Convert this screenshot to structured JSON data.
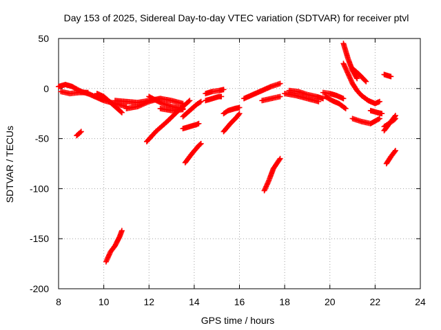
{
  "chart_data": {
    "type": "scatter",
    "title": "Day 153 of 2025, Sidereal Day-to-day VTEC variation (SDTVAR) for receiver ptvl",
    "xlabel": "GPS time / hours",
    "ylabel": "SDTVAR / TECUs",
    "xlim": [
      8,
      24
    ],
    "ylim": [
      -200,
      50
    ],
    "xticks": [
      8,
      10,
      12,
      14,
      16,
      18,
      20,
      22,
      24
    ],
    "yticks": [
      -200,
      -150,
      -100,
      -50,
      0,
      50
    ],
    "grid": true,
    "marker": "plus",
    "color": "#ff0000",
    "series": [
      {
        "name": "arc-1",
        "x": [
          8.0,
          8.3,
          8.6,
          9.0,
          9.3
        ],
        "y": [
          2,
          4,
          2,
          -3,
          -5
        ]
      },
      {
        "name": "arc-2",
        "x": [
          8.1,
          8.5,
          8.9,
          9.3
        ],
        "y": [
          -3,
          -5,
          -4,
          -4
        ]
      },
      {
        "name": "arc-3",
        "x": [
          9.2,
          9.6,
          10.0,
          10.5,
          11.0
        ],
        "y": [
          -4,
          -8,
          -12,
          -15,
          -18
        ]
      },
      {
        "name": "arc-4",
        "x": [
          9.7,
          10.0,
          10.3,
          10.6,
          10.8
        ],
        "y": [
          -5,
          -8,
          -14,
          -20,
          -24
        ]
      },
      {
        "name": "arc-5",
        "x": [
          10.5,
          11.0,
          11.5,
          12.0,
          12.5
        ],
        "y": [
          -12,
          -13,
          -14,
          -12,
          -10
        ]
      },
      {
        "name": "arc-6",
        "x": [
          11.0,
          11.5,
          12.0,
          12.5,
          13.0,
          13.5
        ],
        "y": [
          -20,
          -18,
          -13,
          -10,
          -12,
          -15
        ]
      },
      {
        "name": "arc-7",
        "x": [
          12.0,
          12.5,
          13.0,
          13.5
        ],
        "y": [
          -8,
          -14,
          -18,
          -20
        ]
      },
      {
        "name": "arc-8",
        "x": [
          12.5,
          13.0,
          13.5
        ],
        "y": [
          -20,
          -22,
          -21
        ]
      },
      {
        "name": "arc-9",
        "x": [
          11.9,
          12.3,
          12.8,
          13.3,
          13.8
        ],
        "y": [
          -53,
          -43,
          -33,
          -22,
          -12
        ]
      },
      {
        "name": "arc-10",
        "x": [
          13.5,
          13.8,
          14.1,
          14.3
        ],
        "y": [
          -28,
          -22,
          -16,
          -13
        ]
      },
      {
        "name": "arc-11",
        "x": [
          13.5,
          13.8,
          14.1,
          14.2
        ],
        "y": [
          -40,
          -38,
          -36,
          -35
        ]
      },
      {
        "name": "arc-12",
        "x": [
          13.6,
          13.9,
          14.2,
          14.3
        ],
        "y": [
          -74,
          -65,
          -57,
          -55
        ]
      },
      {
        "name": "arc-13",
        "x": [
          14.5,
          14.8,
          15.1,
          15.3
        ],
        "y": [
          -5,
          -3,
          -2,
          -1
        ]
      },
      {
        "name": "arc-14",
        "x": [
          14.5,
          14.8,
          15.1,
          15.2
        ],
        "y": [
          -12,
          -10,
          -8,
          -8
        ]
      },
      {
        "name": "arc-15",
        "x": [
          15.3,
          15.5,
          15.8,
          16.0
        ],
        "y": [
          -25,
          -22,
          -20,
          -19
        ]
      },
      {
        "name": "arc-16",
        "x": [
          15.3,
          15.6,
          15.9,
          16.0
        ],
        "y": [
          -43,
          -35,
          -28,
          -25
        ]
      },
      {
        "name": "arc-17",
        "x": [
          16.2,
          16.6,
          17.0,
          17.4,
          17.8
        ],
        "y": [
          -10,
          -6,
          -2,
          2,
          5
        ]
      },
      {
        "name": "arc-18",
        "x": [
          17.0,
          17.4,
          17.8
        ],
        "y": [
          -12,
          -10,
          -8
        ]
      },
      {
        "name": "arc-19",
        "x": [
          17.1,
          17.3,
          17.5,
          17.8
        ],
        "y": [
          -102,
          -92,
          -80,
          -70
        ]
      },
      {
        "name": "arc-20",
        "x": [
          18.2,
          18.6,
          19.0,
          19.4,
          19.7
        ],
        "y": [
          -2,
          -3,
          -6,
          -8,
          -10
        ]
      },
      {
        "name": "arc-21",
        "x": [
          18.0,
          18.5,
          19.0,
          19.5
        ],
        "y": [
          -5,
          -7,
          -10,
          -13
        ]
      },
      {
        "name": "arc-22",
        "x": [
          19.8,
          20.1,
          20.4,
          20.7
        ],
        "y": [
          -8,
          -12,
          -15,
          -20
        ]
      },
      {
        "name": "arc-23",
        "x": [
          19.7,
          20.0,
          20.3,
          20.6
        ],
        "y": [
          -4,
          -5,
          -7,
          -10
        ]
      },
      {
        "name": "arc-24",
        "x": [
          20.6,
          20.8,
          21.0,
          21.2
        ],
        "y": [
          45,
          30,
          18,
          10
        ]
      },
      {
        "name": "arc-25",
        "x": [
          20.6,
          20.8,
          21.0,
          21.2,
          21.4,
          21.7,
          22.0,
          22.2
        ],
        "y": [
          25,
          15,
          5,
          -2,
          -7,
          -12,
          -15,
          -13
        ]
      },
      {
        "name": "arc-26",
        "x": [
          21.0,
          21.3,
          21.6
        ],
        "y": [
          20,
          14,
          7
        ]
      },
      {
        "name": "arc-27",
        "x": [
          21.0,
          21.4,
          21.8,
          22.2
        ],
        "y": [
          -30,
          -33,
          -35,
          -30
        ]
      },
      {
        "name": "arc-28",
        "x": [
          21.8,
          22.1,
          22.3
        ],
        "y": [
          -22,
          -24,
          -25
        ]
      },
      {
        "name": "arc-29",
        "x": [
          22.4,
          22.7
        ],
        "y": [
          14,
          12
        ]
      },
      {
        "name": "arc-30",
        "x": [
          22.4,
          22.6,
          22.8,
          22.9
        ],
        "y": [
          -42,
          -36,
          -30,
          -27
        ]
      },
      {
        "name": "arc-31",
        "x": [
          22.4,
          22.6,
          22.8,
          22.9
        ],
        "y": [
          -38,
          -35,
          -32,
          -30
        ]
      },
      {
        "name": "arc-32",
        "x": [
          22.5,
          22.7,
          22.9
        ],
        "y": [
          -75,
          -68,
          -62
        ]
      },
      {
        "name": "arc-33",
        "x": [
          8.8,
          9.0
        ],
        "y": [
          -47,
          -43
        ]
      },
      {
        "name": "arc-34",
        "x": [
          10.1,
          10.3,
          10.5,
          10.7,
          10.8
        ],
        "y": [
          -173,
          -163,
          -157,
          -148,
          -142
        ]
      }
    ]
  }
}
